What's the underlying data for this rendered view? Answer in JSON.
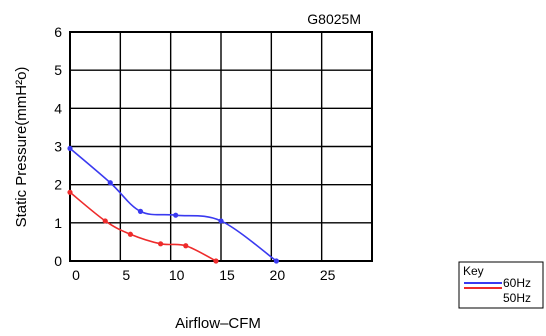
{
  "chart_data": {
    "type": "line",
    "title": "G8025M",
    "xlabel": "Airflow–CFM",
    "ylabel": "Static Pressure(mmH²o)",
    "xlim": [
      0,
      30
    ],
    "ylim": [
      0,
      6
    ],
    "x_ticks": [
      "0",
      "5",
      "10",
      "15",
      "20",
      "25"
    ],
    "y_ticks": [
      "0",
      "1",
      "2",
      "3",
      "4",
      "5",
      "6"
    ],
    "grid": true,
    "legend_position": "bottom-right",
    "legend_title": "Key",
    "series": [
      {
        "name": "60Hz",
        "color": "#3a3af0",
        "points": [
          {
            "x": 0,
            "y": 2.95
          },
          {
            "x": 4,
            "y": 2.05
          },
          {
            "x": 7,
            "y": 1.3
          },
          {
            "x": 10.5,
            "y": 1.2
          },
          {
            "x": 15,
            "y": 1.05
          },
          {
            "x": 20.5,
            "y": 0
          }
        ]
      },
      {
        "name": "50Hz",
        "color": "#ee2b2b",
        "points": [
          {
            "x": 0,
            "y": 1.8
          },
          {
            "x": 3.5,
            "y": 1.05
          },
          {
            "x": 6,
            "y": 0.7
          },
          {
            "x": 9,
            "y": 0.45
          },
          {
            "x": 11.5,
            "y": 0.4
          },
          {
            "x": 14.5,
            "y": 0
          }
        ]
      }
    ]
  }
}
